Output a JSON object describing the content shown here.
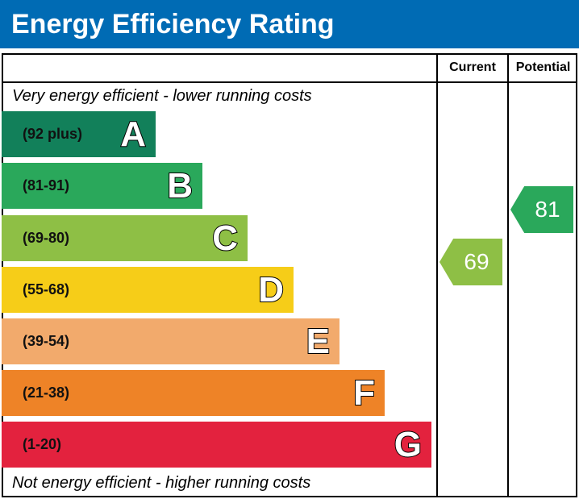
{
  "chart_data": {
    "type": "bar",
    "title": "Energy Efficiency Rating",
    "columns": [
      "Current",
      "Potential"
    ],
    "top_note": "Very energy efficient - lower running costs",
    "bottom_note": "Not energy efficient - higher running costs",
    "bands": [
      {
        "letter": "A",
        "range": "(92 plus)",
        "color": "#12805a"
      },
      {
        "letter": "B",
        "range": "(81-91)",
        "color": "#2aa85b"
      },
      {
        "letter": "C",
        "range": "(69-80)",
        "color": "#8ebf45"
      },
      {
        "letter": "D",
        "range": "(55-68)",
        "color": "#f6cd18"
      },
      {
        "letter": "E",
        "range": "(39-54)",
        "color": "#f2aa6c"
      },
      {
        "letter": "F",
        "range": "(21-38)",
        "color": "#ee8327"
      },
      {
        "letter": "G",
        "range": "(1-20)",
        "color": "#e3223e"
      }
    ],
    "current": {
      "value": "69",
      "band": "C"
    },
    "potential": {
      "value": "81",
      "band": "B"
    }
  }
}
